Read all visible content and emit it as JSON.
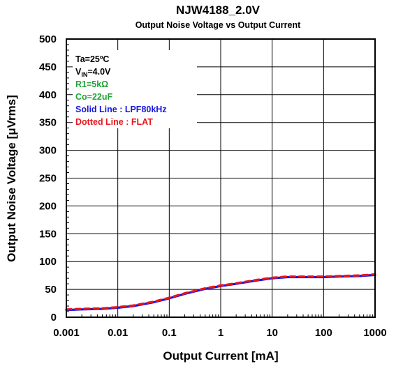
{
  "chart_data": {
    "type": "line",
    "title": "NJW4188_2.0V",
    "subtitle": "Output Noise Voltage vs Output Current",
    "xlabel": "Output Current [mA]",
    "ylabel": "Output Noise Voltage [μVrms]",
    "x_scale": "log",
    "xlim": [
      0.001,
      1000
    ],
    "ylim": [
      0,
      500
    ],
    "x_ticks": [
      0.001,
      0.01,
      0.1,
      1,
      10,
      100,
      1000
    ],
    "x_tick_labels": [
      "0.001",
      "0.01",
      "0.1",
      "1",
      "10",
      "100",
      "1000"
    ],
    "y_ticks": [
      0,
      50,
      100,
      150,
      200,
      250,
      300,
      350,
      400,
      450,
      500
    ],
    "y_tick_labels": [
      "0",
      "50",
      "100",
      "150",
      "200",
      "250",
      "300",
      "350",
      "400",
      "450",
      "500"
    ],
    "grid": true,
    "annotations": {
      "ta": "Ta=25ºC",
      "vin_main": "V",
      "vin_sub": "IN",
      "vin_rest": "=4.0V",
      "r1": "R1=5kΩ",
      "co": "Co=22uF",
      "solid": "Solid Line : LPF80kHz",
      "dotted": "Dotted Line : FLAT"
    },
    "annotation_colors": {
      "black": "#000000",
      "green": "#22a33a",
      "blue": "#1515e0",
      "red": "#e8161b"
    },
    "series": [
      {
        "name": "Solid Line : LPF80kHz",
        "color": "#1515e0",
        "style": "solid",
        "x": [
          0.001,
          0.002,
          0.005,
          0.01,
          0.02,
          0.05,
          0.1,
          0.2,
          0.5,
          1,
          2,
          5,
          10,
          20,
          50,
          100,
          200,
          500,
          1000
        ],
        "y": [
          13,
          14,
          15,
          17,
          20,
          27,
          34,
          42,
          51,
          56,
          60,
          66,
          70,
          72,
          72,
          72,
          73,
          74,
          76
        ]
      },
      {
        "name": "Dotted Line : FLAT",
        "color": "#e8161b",
        "style": "dotted",
        "x": [
          0.001,
          0.002,
          0.005,
          0.01,
          0.02,
          0.05,
          0.1,
          0.2,
          0.5,
          1,
          2,
          5,
          10,
          20,
          50,
          100,
          200,
          500,
          1000
        ],
        "y": [
          14,
          15,
          16,
          18,
          21,
          28,
          35,
          43,
          52,
          57,
          61,
          67,
          71,
          73,
          73,
          73,
          74,
          75,
          77
        ]
      }
    ]
  }
}
